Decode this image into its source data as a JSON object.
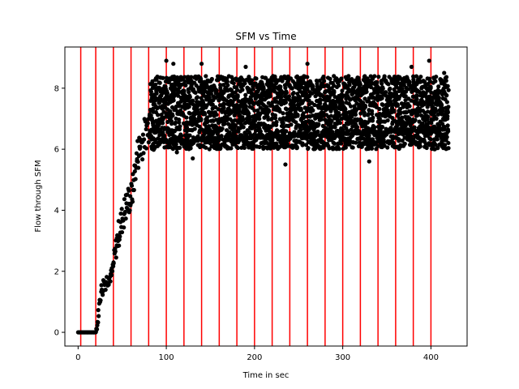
{
  "chart_data": {
    "type": "scatter",
    "title": "SFM vs Time",
    "xlabel": "Time in sec",
    "ylabel": "Flow through SFM",
    "xlim": [
      -15,
      441
    ],
    "ylim": [
      -0.45,
      9.35
    ],
    "xticks": [
      0,
      100,
      200,
      300,
      400
    ],
    "yticks": [
      0,
      2,
      4,
      6,
      8
    ],
    "grid": false,
    "marker_color": "#000000",
    "vline_color": "#ff0000",
    "vlines": [
      3,
      20,
      40,
      60,
      80,
      100,
      120,
      140,
      160,
      180,
      200,
      220,
      240,
      260,
      280,
      300,
      320,
      340,
      360,
      380,
      400
    ],
    "series": [
      {
        "x": [
          0,
          5,
          10,
          15,
          18,
          20,
          22,
          25,
          28,
          32,
          36,
          38,
          40,
          42,
          45,
          48,
          52,
          56,
          60,
          62,
          65,
          68,
          72,
          76,
          80,
          82,
          84,
          86,
          90,
          100,
          120,
          140,
          160,
          180,
          200,
          220,
          240,
          260,
          280,
          300,
          320,
          340,
          360,
          380,
          400,
          420
        ],
        "y": [
          0,
          0,
          0,
          0,
          0,
          0,
          0.3,
          1.2,
          1.5,
          1.7,
          1.8,
          1.9,
          2.2,
          2.6,
          3.1,
          3.5,
          3.9,
          4.3,
          4.4,
          4.7,
          5.4,
          5.9,
          6.2,
          6.5,
          6.8,
          7.4,
          7.1,
          7.2,
          7.2,
          7.2,
          7.2,
          7.2,
          7.2,
          7.2,
          7.2,
          7.2,
          7.2,
          7.2,
          7.2,
          7.2,
          7.2,
          7.2,
          7.2,
          7.2,
          7.2,
          7.2
        ],
        "band": [
          0,
          0,
          0,
          0,
          0,
          0,
          0.15,
          0.25,
          0.3,
          0.25,
          0.2,
          0.2,
          0.3,
          0.35,
          0.45,
          0.5,
          0.5,
          0.5,
          0.5,
          0.5,
          0.5,
          0.6,
          0.6,
          0.6,
          0.6,
          1.0,
          1.2,
          1.2,
          1.2,
          1.2,
          1.2,
          1.2,
          1.2,
          1.2,
          1.2,
          1.2,
          1.2,
          1.2,
          1.2,
          1.2,
          1.2,
          1.2,
          1.2,
          1.2,
          1.2,
          1.2
        ]
      }
    ],
    "outliers": [
      [
        100,
        8.9
      ],
      [
        108,
        8.8
      ],
      [
        112,
        5.9
      ],
      [
        130,
        5.7
      ],
      [
        140,
        8.8
      ],
      [
        190,
        8.7
      ],
      [
        235,
        5.5
      ],
      [
        260,
        8.8
      ],
      [
        330,
        5.6
      ],
      [
        378,
        8.7
      ],
      [
        398,
        8.9
      ],
      [
        415,
        8.5
      ],
      [
        404,
        6.0
      ]
    ]
  }
}
